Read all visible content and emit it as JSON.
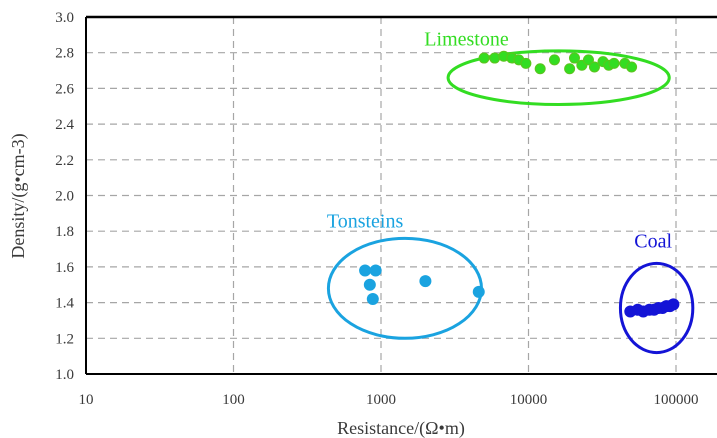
{
  "chart_data": {
    "type": "scatter",
    "xlabel": "Resistance/(Ω•m)",
    "ylabel": "Density/(g•cm-3)",
    "xscale": "log",
    "xlim": [
      10,
      100000
    ],
    "ylim": [
      1.0,
      3.0
    ],
    "xticks": [
      10,
      100,
      1000,
      10000,
      100000
    ],
    "xtick_labels": [
      "10",
      "100",
      "1000",
      "10000",
      "100000"
    ],
    "yticks": [
      1.0,
      1.2,
      1.4,
      1.6,
      1.8,
      2.0,
      2.2,
      2.4,
      2.6,
      2.8,
      3.0
    ],
    "ytick_labels": [
      "1.0",
      "1.2",
      "1.4",
      "1.6",
      "1.8",
      "2.0",
      "2.2",
      "2.4",
      "2.6",
      "2.8",
      "3.0"
    ],
    "grid": true,
    "series": [
      {
        "name": "Limestone",
        "color": "#33dd22",
        "points": [
          {
            "x": 5000,
            "y": 2.77
          },
          {
            "x": 5900,
            "y": 2.77
          },
          {
            "x": 6800,
            "y": 2.78
          },
          {
            "x": 7700,
            "y": 2.77
          },
          {
            "x": 8600,
            "y": 2.76
          },
          {
            "x": 9600,
            "y": 2.74
          },
          {
            "x": 12000,
            "y": 2.71
          },
          {
            "x": 15000,
            "y": 2.76
          },
          {
            "x": 19000,
            "y": 2.71
          },
          {
            "x": 20500,
            "y": 2.77
          },
          {
            "x": 23000,
            "y": 2.73
          },
          {
            "x": 25500,
            "y": 2.76
          },
          {
            "x": 28000,
            "y": 2.72
          },
          {
            "x": 32000,
            "y": 2.75
          },
          {
            "x": 35000,
            "y": 2.73
          },
          {
            "x": 38000,
            "y": 2.74
          },
          {
            "x": 45000,
            "y": 2.74
          },
          {
            "x": 50000,
            "y": 2.72
          }
        ]
      },
      {
        "name": "Tonsteins",
        "color": "#1aa3e0",
        "points": [
          {
            "x": 780,
            "y": 1.58
          },
          {
            "x": 920,
            "y": 1.58
          },
          {
            "x": 840,
            "y": 1.5
          },
          {
            "x": 880,
            "y": 1.42
          },
          {
            "x": 2000,
            "y": 1.52
          },
          {
            "x": 4600,
            "y": 1.46
          }
        ]
      },
      {
        "name": "Coal",
        "color": "#1414d6",
        "points": [
          {
            "x": 49000,
            "y": 1.35
          },
          {
            "x": 55000,
            "y": 1.36
          },
          {
            "x": 60000,
            "y": 1.35
          },
          {
            "x": 66000,
            "y": 1.36
          },
          {
            "x": 71000,
            "y": 1.36
          },
          {
            "x": 76000,
            "y": 1.37
          },
          {
            "x": 81000,
            "y": 1.37
          },
          {
            "x": 86000,
            "y": 1.38
          },
          {
            "x": 91000,
            "y": 1.38
          },
          {
            "x": 96000,
            "y": 1.39
          }
        ]
      }
    ],
    "annotations": [
      {
        "text": "Limestone",
        "color": "#33dd22",
        "x": 3800,
        "y": 2.84,
        "ellipse": {
          "cx": 16000,
          "cy": 2.66,
          "x_span": [
            2850,
            90000
          ],
          "y_span": [
            2.51,
            2.81
          ]
        }
      },
      {
        "text": "Tonsteins",
        "color": "#1aa3e0",
        "x": 780,
        "y": 1.82,
        "ellipse": {
          "cx": 1500,
          "cy": 1.38,
          "x_span": [
            440,
            4800
          ],
          "y_span": [
            1.2,
            1.76
          ]
        }
      },
      {
        "text": "Coal",
        "color": "#1414d6",
        "x": 70000,
        "y": 1.71,
        "ellipse": {
          "cx": 70000,
          "cy": 1.37,
          "x_span": [
            42000,
            130000
          ],
          "y_span": [
            1.12,
            1.62
          ]
        }
      }
    ]
  }
}
